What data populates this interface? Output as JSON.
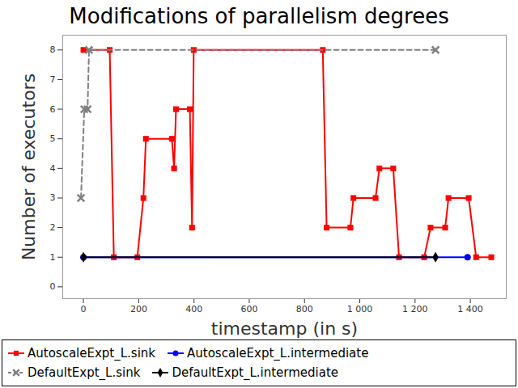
{
  "chart_data": {
    "type": "line",
    "title": "Modifications of parallelism degrees",
    "x_label": "timestamp (in s)",
    "y_label": "Number of executors",
    "xlim": [
      -75,
      1530
    ],
    "xticks": [
      0,
      200,
      400,
      600,
      800,
      {
        "value": 1000,
        "label": "1 000"
      },
      {
        "value": 1200,
        "label": "1 200"
      },
      {
        "value": 1400,
        "label": "1 400"
      }
    ],
    "ylim": [
      -0.4,
      8.5
    ],
    "yticks": [
      0,
      1,
      2,
      3,
      4,
      5,
      6,
      7,
      8
    ],
    "grid": false,
    "legend": "bottom",
    "series": [
      {
        "name": "AutoscaleExpt_L.sink",
        "color": "#ff0000",
        "marker": "square",
        "line_style": "solid",
        "x": [
          0,
          95,
          110,
          195,
          217,
          226,
          320,
          328,
          335,
          385,
          393,
          399,
          866,
          880,
          966,
          977,
          1057,
          1071,
          1121,
          1142,
          1233,
          1256,
          1309,
          1321,
          1394,
          1421,
          1476
        ],
        "values": [
          8,
          8,
          1,
          1,
          3,
          5,
          5,
          4,
          6,
          6,
          2,
          8,
          8,
          2,
          2,
          3,
          3,
          4,
          4,
          1,
          1,
          2,
          2,
          3,
          3,
          1,
          1
        ]
      },
      {
        "name": "AutoscaleExpt_L.intermediate",
        "color": "#0000ff",
        "marker": "circle",
        "line_style": "solid",
        "x": [
          0,
          1390
        ],
        "values": [
          1,
          1
        ]
      },
      {
        "name": "DefaultExpt_L.sink",
        "color": "#808080",
        "marker": "times",
        "line_style": "dashed",
        "x": [
          -9,
          3,
          15,
          20,
          1274
        ],
        "values": [
          3,
          6,
          6,
          8,
          8
        ]
      },
      {
        "name": "DefaultExpt_L.intermediate",
        "color": "#000000",
        "marker": "diamond",
        "line_style": "solid",
        "x": [
          0,
          1274
        ],
        "values": [
          1,
          1
        ]
      }
    ]
  }
}
